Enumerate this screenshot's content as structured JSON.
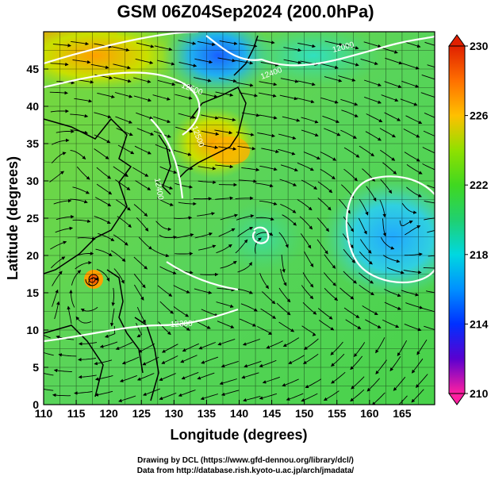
{
  "title": "GSM 06Z04Sep2024 (200.0hPa)",
  "map": {
    "xlabel": "Longitude (degrees)",
    "ylabel": "Latitude  (degrees)",
    "x_ticks": [
      "110",
      "115",
      "120",
      "125",
      "130",
      "135",
      "140",
      "145",
      "150",
      "155",
      "160",
      "165"
    ],
    "y_ticks": [
      "0",
      "5",
      "10",
      "15",
      "20",
      "25",
      "30",
      "35",
      "40",
      "45"
    ],
    "lon_range": [
      110,
      170
    ],
    "lat_range": [
      0,
      50
    ],
    "grid": true,
    "contour_labels": [
      "12500",
      "12500",
      "12400",
      "12000",
      "12300",
      "12400"
    ]
  },
  "colorbar": {
    "ticks": [
      "230",
      "226",
      "222",
      "218",
      "214",
      "210"
    ],
    "range": [
      210,
      230
    ],
    "colors": [
      "#ff20a0",
      "#5a00d0",
      "#0030ff",
      "#00a0ff",
      "#00e0d0",
      "#20d060",
      "#40d820",
      "#a0e000",
      "#ffc000",
      "#ff7000",
      "#e02000"
    ]
  },
  "credits": {
    "line1": "Drawing by DCL (https://www.gfd-dennou.org/library/dcl/)",
    "line2": "Data from http://database.rish.kyoto-u.ac.jp/arch/jmadata/"
  }
}
